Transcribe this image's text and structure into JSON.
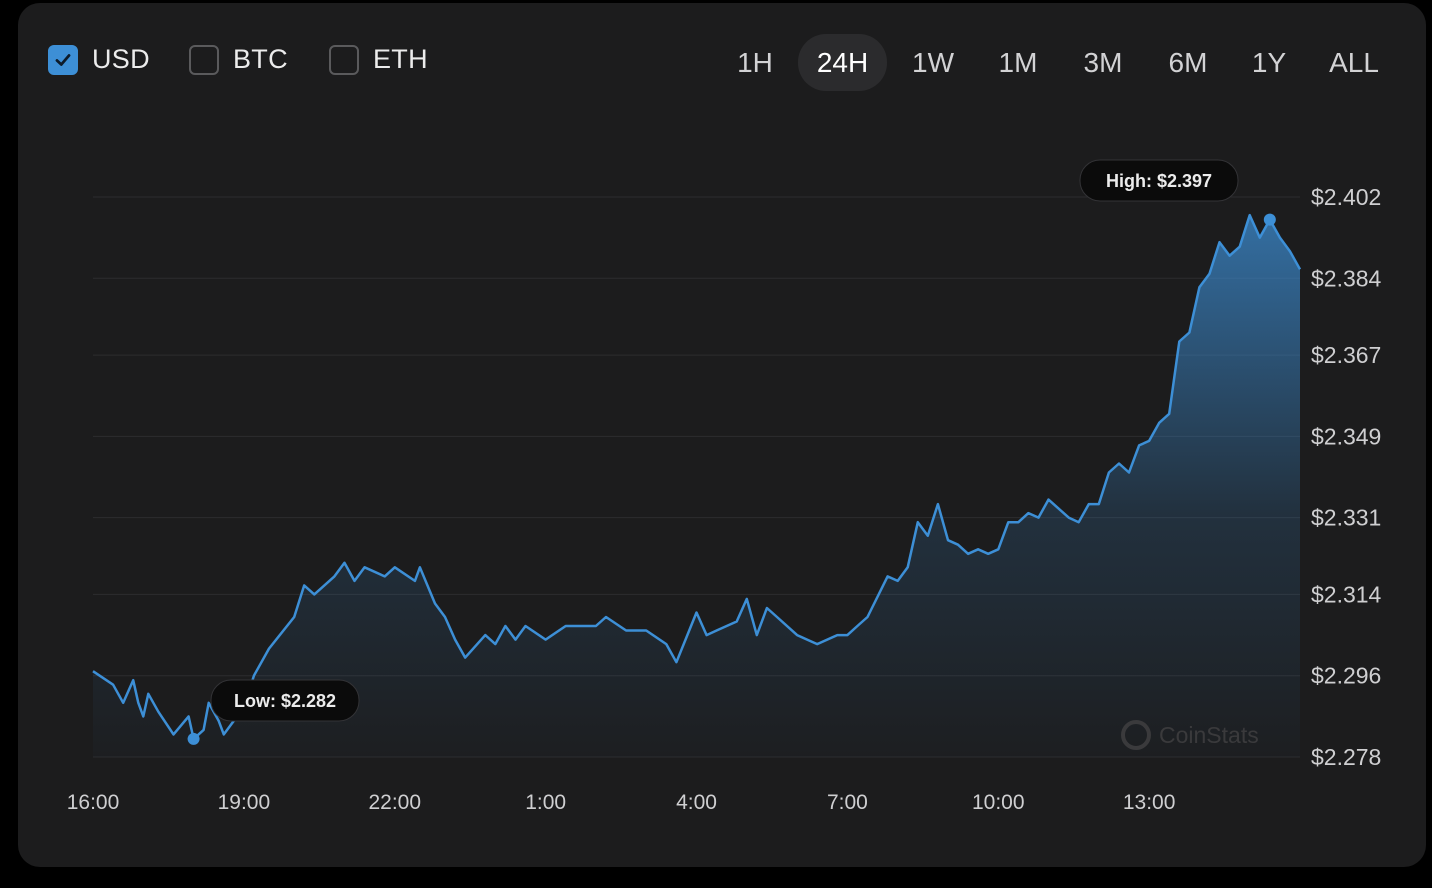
{
  "currencies": [
    {
      "label": "USD",
      "checked": true
    },
    {
      "label": "BTC",
      "checked": false
    },
    {
      "label": "ETH",
      "checked": false
    }
  ],
  "timeframes": [
    {
      "label": "1H",
      "active": false
    },
    {
      "label": "24H",
      "active": true
    },
    {
      "label": "1W",
      "active": false
    },
    {
      "label": "1M",
      "active": false
    },
    {
      "label": "3M",
      "active": false
    },
    {
      "label": "6M",
      "active": false
    },
    {
      "label": "1Y",
      "active": false
    },
    {
      "label": "ALL",
      "active": false
    }
  ],
  "colors": {
    "line": "#3d8fd6",
    "accent": "#3d8fd6",
    "background": "#1c1c1d"
  },
  "watermark": "CoinStats",
  "chart_data": {
    "type": "area",
    "y_ticks": [
      "$2.402",
      "$2.384",
      "$2.367",
      "$2.349",
      "$2.331",
      "$2.314",
      "$2.296",
      "$2.278"
    ],
    "y_tick_values": [
      2.402,
      2.384,
      2.367,
      2.349,
      2.331,
      2.314,
      2.296,
      2.278
    ],
    "ylim": [
      2.278,
      2.402
    ],
    "x_ticks": [
      "16:00",
      "19:00",
      "22:00",
      "1:00",
      "4:00",
      "7:00",
      "10:00",
      "13:00"
    ],
    "x_tick_hours": [
      0,
      3,
      6,
      9,
      12,
      15,
      18,
      21
    ],
    "xlim_hours": [
      0,
      24
    ],
    "grid": true,
    "low_label": "Low: $2.282",
    "high_label": "High: $2.397",
    "low_point": {
      "x_hours": 2.0,
      "y": 2.282
    },
    "high_point": {
      "x_hours": 23.4,
      "y": 2.397
    },
    "series": [
      {
        "x_hours": [
          0.0,
          0.4,
          0.6,
          0.8,
          0.9,
          1.0,
          1.1,
          1.3,
          1.6,
          1.9,
          2.0,
          2.2,
          2.3,
          2.5,
          2.6,
          3.0,
          3.2,
          3.5,
          4.0,
          4.2,
          4.4,
          4.8,
          5.0,
          5.2,
          5.4,
          5.8,
          6.0,
          6.4,
          6.5,
          6.8,
          7.0,
          7.2,
          7.4,
          7.8,
          8.0,
          8.2,
          8.4,
          8.6,
          9.0,
          9.4,
          10.0,
          10.2,
          10.6,
          11.0,
          11.4,
          11.6,
          12.0,
          12.2,
          12.4,
          12.8,
          13.0,
          13.2,
          13.4,
          13.6,
          14.0,
          14.2,
          14.4,
          14.8,
          15.0,
          15.2,
          15.4,
          15.8,
          16.0,
          16.2,
          16.4,
          16.6,
          16.8,
          17.0,
          17.2,
          17.4,
          17.6,
          17.8,
          18.0,
          18.2,
          18.4,
          18.6,
          18.8,
          19.0,
          19.2,
          19.4,
          19.6,
          19.8,
          20.0,
          20.2,
          20.4,
          20.6,
          20.8,
          21.0,
          21.2,
          21.4,
          21.6,
          21.8,
          22.0,
          22.2,
          22.4,
          22.6,
          22.8,
          23.0,
          23.2,
          23.4,
          23.6,
          23.8,
          24.0
        ],
        "y": [
          2.297,
          2.294,
          2.29,
          2.295,
          2.29,
          2.287,
          2.292,
          2.288,
          2.283,
          2.287,
          2.282,
          2.284,
          2.29,
          2.286,
          2.283,
          2.289,
          2.296,
          2.302,
          2.309,
          2.316,
          2.314,
          2.318,
          2.321,
          2.317,
          2.32,
          2.318,
          2.32,
          2.317,
          2.32,
          2.312,
          2.309,
          2.304,
          2.3,
          2.305,
          2.303,
          2.307,
          2.304,
          2.307,
          2.304,
          2.307,
          2.307,
          2.309,
          2.306,
          2.306,
          2.303,
          2.299,
          2.31,
          2.305,
          2.306,
          2.308,
          2.313,
          2.305,
          2.311,
          2.309,
          2.305,
          2.304,
          2.303,
          2.305,
          2.305,
          2.307,
          2.309,
          2.318,
          2.317,
          2.32,
          2.33,
          2.327,
          2.334,
          2.326,
          2.325,
          2.323,
          2.324,
          2.323,
          2.324,
          2.33,
          2.33,
          2.332,
          2.331,
          2.335,
          2.333,
          2.331,
          2.33,
          2.334,
          2.334,
          2.341,
          2.343,
          2.341,
          2.347,
          2.348,
          2.352,
          2.354,
          2.37,
          2.372,
          2.382,
          2.385,
          2.392,
          2.389,
          2.391,
          2.398,
          2.393,
          2.397,
          2.393,
          2.39,
          2.386
        ]
      }
    ]
  }
}
